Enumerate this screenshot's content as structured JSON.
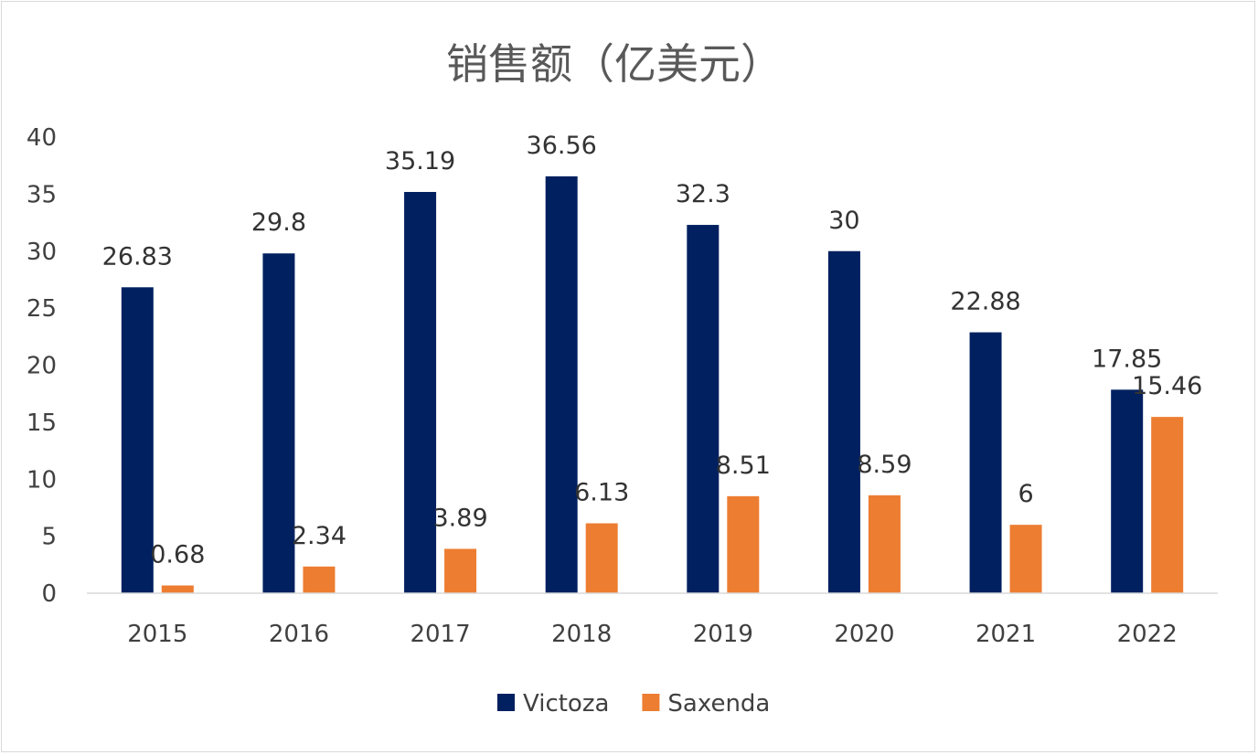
{
  "chart_data": {
    "type": "bar",
    "title": "销售额（亿美元）",
    "categories": [
      "2015",
      "2016",
      "2017",
      "2018",
      "2019",
      "2020",
      "2021",
      "2022"
    ],
    "series": [
      {
        "name": "Victoza",
        "color": "#002060",
        "values": [
          26.83,
          29.8,
          35.19,
          36.56,
          32.3,
          30,
          22.88,
          17.85
        ]
      },
      {
        "name": "Saxenda",
        "color": "#ED7D31",
        "values": [
          0.68,
          2.34,
          3.89,
          6.13,
          8.51,
          8.59,
          6,
          15.46
        ]
      }
    ],
    "yticks": [
      "0",
      "5",
      "10",
      "15",
      "20",
      "25",
      "30",
      "35",
      "40"
    ],
    "ylim": [
      0,
      40
    ],
    "grid": false,
    "legend_position": "bottom"
  }
}
